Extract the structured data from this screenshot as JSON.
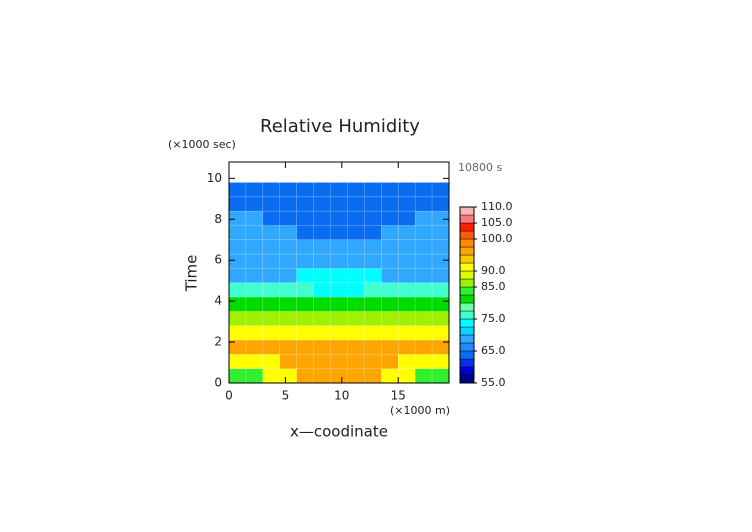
{
  "chart_data": {
    "type": "contour",
    "title": "Relative Humidity",
    "y_unit": "(×1000 sec)",
    "time_label": "10800 s",
    "xlabel": "x—coodinate",
    "x_unit": "(×1000 m)",
    "ylabel": "Time",
    "xlim": [
      0,
      19.5
    ],
    "ylim": [
      0,
      10.8
    ],
    "xticks": [
      0,
      5,
      10,
      15
    ],
    "yticks": [
      0,
      2,
      4,
      6,
      8,
      10
    ],
    "x": [
      0.75,
      2.25,
      3.75,
      5.25,
      6.75,
      8.25,
      9.75,
      11.25,
      12.75,
      14.25,
      15.75,
      17.25,
      18.75
    ],
    "y": [
      0.35,
      1.05,
      1.75,
      2.45,
      3.15,
      3.85,
      4.55,
      5.25,
      5.95,
      6.65,
      7.35,
      8.05,
      8.75,
      9.45
    ],
    "z": [
      [
        84,
        84,
        90,
        90,
        96,
        96,
        96,
        96,
        96,
        90,
        90,
        84,
        84
      ],
      [
        91,
        91,
        91,
        96,
        96,
        96,
        96,
        96,
        96,
        96,
        91,
        91,
        91
      ],
      [
        96,
        96,
        96,
        96,
        96,
        96,
        96,
        96,
        96,
        96,
        96,
        96,
        96
      ],
      [
        91,
        91,
        91,
        91,
        91,
        91,
        91,
        91,
        91,
        91,
        91,
        91,
        91
      ],
      [
        86,
        86,
        86,
        86,
        86,
        86,
        86,
        86,
        86,
        86,
        86,
        86,
        86
      ],
      [
        81,
        81,
        81,
        81,
        81,
        81,
        81,
        81,
        81,
        81,
        81,
        81,
        81
      ],
      [
        76,
        76,
        76,
        76,
        76,
        73,
        73,
        73,
        76,
        76,
        76,
        76,
        76
      ],
      [
        68,
        68,
        68,
        68,
        73,
        73,
        73,
        73,
        73,
        68,
        68,
        68,
        68
      ],
      [
        68,
        68,
        68,
        68,
        68,
        68,
        68,
        68,
        68,
        68,
        68,
        68,
        68
      ],
      [
        68,
        68,
        68,
        68,
        68,
        68,
        68,
        68,
        68,
        68,
        68,
        68,
        68
      ],
      [
        68,
        68,
        68,
        68,
        64,
        64,
        64,
        64,
        64,
        68,
        68,
        68,
        68
      ],
      [
        68,
        68,
        64,
        64,
        64,
        64,
        64,
        64,
        64,
        64,
        64,
        68,
        68
      ],
      [
        64,
        64,
        64,
        64,
        64,
        64,
        64,
        64,
        64,
        64,
        64,
        64,
        64
      ],
      [
        64,
        64,
        64,
        64,
        64,
        64,
        64,
        64,
        64,
        64,
        64,
        64,
        64
      ]
    ],
    "levels": [
      55,
      57.5,
      60,
      62.5,
      65,
      67.5,
      70,
      72.5,
      75,
      77.5,
      80,
      82.5,
      85,
      87.5,
      90,
      92.5,
      95,
      97.5,
      100,
      102.5,
      105,
      107.5,
      110
    ],
    "colors": [
      "#00008c",
      "#0000c8",
      "#0032f0",
      "#0a6cf0",
      "#1e8cff",
      "#30a8ff",
      "#00d8ff",
      "#00ffff",
      "#40ffd0",
      "#70ffa0",
      "#00dc00",
      "#30f030",
      "#a0f000",
      "#d8ff00",
      "#ffff00",
      "#ffc800",
      "#ffa500",
      "#ff8c00",
      "#ff5a00",
      "#ff1e00",
      "#ff7878",
      "#ffb4b4"
    ],
    "cbar_ticks": [
      {
        "value": 55,
        "label": "55.0"
      },
      {
        "value": 65,
        "label": "65.0"
      },
      {
        "value": 75,
        "label": "75.0"
      },
      {
        "value": 85,
        "label": "85.0"
      },
      {
        "value": 90,
        "label": "90.0"
      },
      {
        "value": 100,
        "label": "100.0"
      },
      {
        "value": 105,
        "label": "105.0"
      },
      {
        "value": 110,
        "label": "110.0"
      }
    ]
  }
}
